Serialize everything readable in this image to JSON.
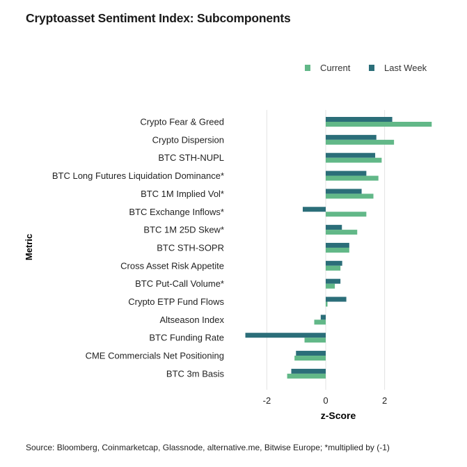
{
  "chart_data": {
    "type": "bar",
    "orientation": "horizontal",
    "title": "Cryptoasset Sentiment Index: Subcomponents",
    "xlabel": "z-Score",
    "ylabel": "Metric",
    "xlim": [
      -3.0,
      3.7
    ],
    "xticks": [
      -2,
      0,
      2
    ],
    "grid": "vertical",
    "legend_placement": "top-right",
    "categories": [
      "Crypto Fear & Greed",
      "Crypto Dispersion",
      "BTC STH-NUPL",
      "BTC Long Futures Liquidation Dominance*",
      "BTC 1M Implied Vol*",
      "BTC Exchange Inflows*",
      "BTC 1M 25D Skew*",
      "BTC STH-SOPR",
      "Cross Asset Risk Appetite",
      "BTC Put-Call Volume*",
      "Crypto ETP Fund Flows",
      "Altseason Index",
      "BTC Funding Rate",
      "CME Commercials Net Positioning",
      "BTC 3m Basis"
    ],
    "series": [
      {
        "name": "Current",
        "color": "#62b888",
        "values": [
          3.6,
          2.32,
          1.9,
          1.79,
          1.62,
          1.38,
          1.07,
          0.8,
          0.5,
          0.31,
          0.06,
          -0.39,
          -0.72,
          -1.06,
          -1.31
        ]
      },
      {
        "name": "Last Week",
        "color": "#2b6e79",
        "values": [
          2.26,
          1.72,
          1.68,
          1.38,
          1.22,
          -0.78,
          0.55,
          0.8,
          0.56,
          0.5,
          0.7,
          -0.17,
          -2.73,
          -1.01,
          -1.17
        ]
      }
    ]
  },
  "source": "Source: Bloomberg, Coinmarketcap, Glassnode, alternative.me, Bitwise Europe; *multiplied by (-1)"
}
